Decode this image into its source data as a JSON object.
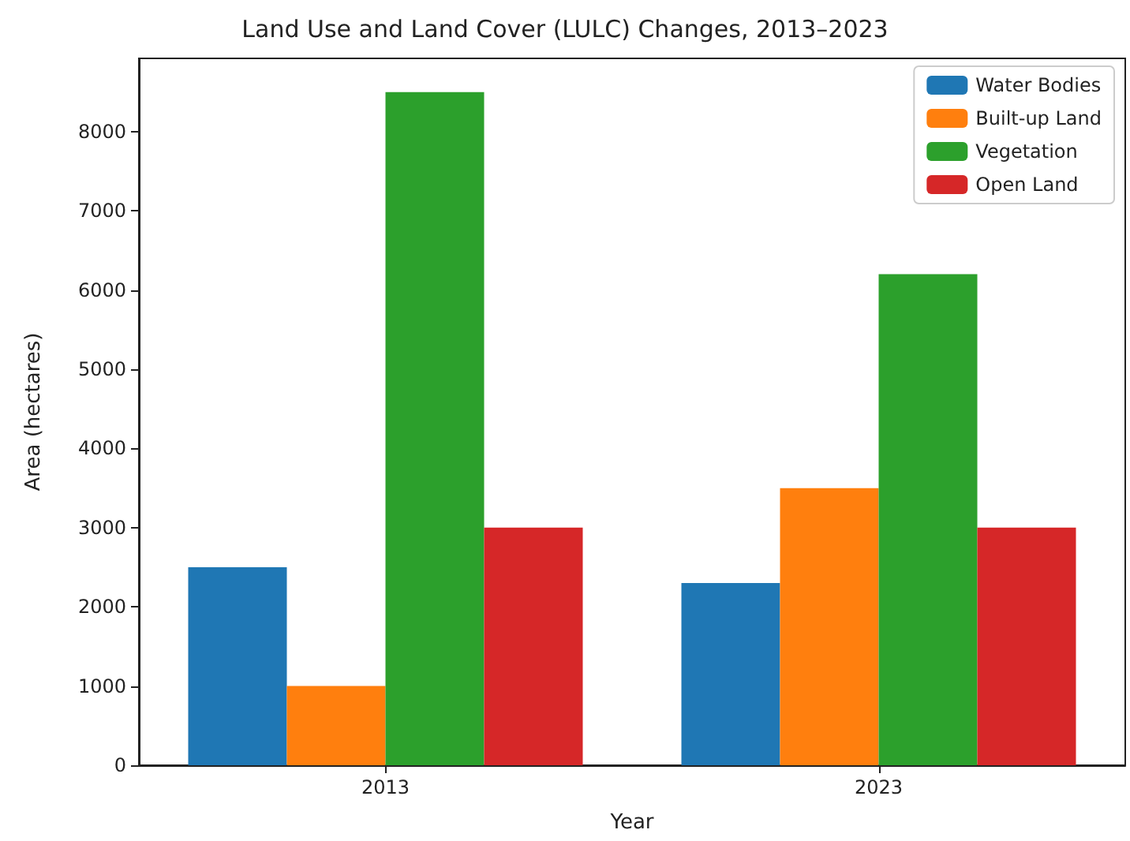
{
  "chart_data": {
    "type": "bar",
    "title": "Land Use and Land Cover (LULC) Changes, 2013–2023",
    "xlabel": "Year",
    "ylabel": "Area (hectares)",
    "categories": [
      "2013",
      "2023"
    ],
    "series": [
      {
        "name": "Water Bodies",
        "color": "#1f77b4",
        "values": [
          2500,
          2300
        ]
      },
      {
        "name": "Built-up Land",
        "color": "#ff7f0e",
        "values": [
          1000,
          3500
        ]
      },
      {
        "name": "Vegetation",
        "color": "#2ca02c",
        "values": [
          8500,
          6200
        ]
      },
      {
        "name": "Open Land",
        "color": "#d62728",
        "values": [
          3000,
          3000
        ]
      }
    ],
    "ylim": [
      0,
      8925
    ],
    "yticks": [
      0,
      1000,
      2000,
      3000,
      4000,
      5000,
      6000,
      7000,
      8000
    ],
    "grid": false,
    "legend": "top right"
  }
}
